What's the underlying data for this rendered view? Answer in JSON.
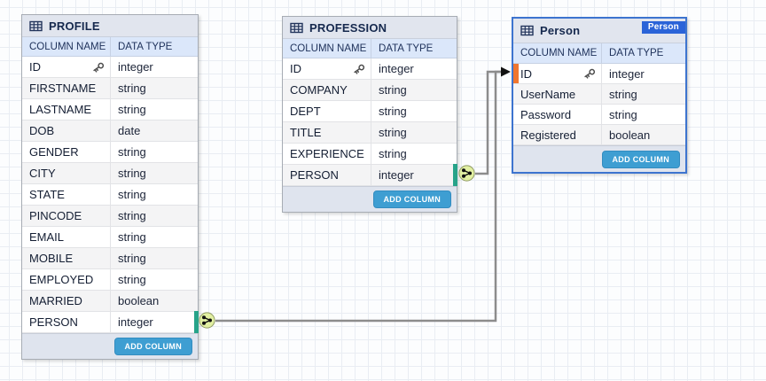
{
  "tables": [
    {
      "title": "PROFILE",
      "col_headers": [
        "COLUMN NAME",
        "DATA TYPE"
      ],
      "add_column_label": "ADD COLUMN",
      "rows": [
        {
          "name": "ID",
          "type": "integer",
          "primary_key": true
        },
        {
          "name": "FIRSTNAME",
          "type": "string"
        },
        {
          "name": "LASTNAME",
          "type": "string"
        },
        {
          "name": "DOB",
          "type": "date"
        },
        {
          "name": "GENDER",
          "type": "string"
        },
        {
          "name": "CITY",
          "type": "string"
        },
        {
          "name": "STATE",
          "type": "string"
        },
        {
          "name": "PINCODE",
          "type": "string"
        },
        {
          "name": "EMAIL",
          "type": "string"
        },
        {
          "name": "MOBILE",
          "type": "string"
        },
        {
          "name": "EMPLOYED",
          "type": "string"
        },
        {
          "name": "MARRIED",
          "type": "boolean"
        },
        {
          "name": "PERSON",
          "type": "integer",
          "relationship_source": true
        }
      ]
    },
    {
      "title": "PROFESSION",
      "col_headers": [
        "COLUMN NAME",
        "DATA TYPE"
      ],
      "add_column_label": "ADD COLUMN",
      "rows": [
        {
          "name": "ID",
          "type": "integer",
          "primary_key": true
        },
        {
          "name": "COMPANY",
          "type": "string"
        },
        {
          "name": "DEPT",
          "type": "string"
        },
        {
          "name": "TITLE",
          "type": "string"
        },
        {
          "name": "EXPERIENCE",
          "type": "string"
        },
        {
          "name": "PERSON",
          "type": "integer",
          "relationship_source": true
        }
      ]
    },
    {
      "title": "Person",
      "badge": "Person",
      "col_headers": [
        "COLUMN NAME",
        "DATA TYPE"
      ],
      "add_column_label": "ADD COLUMN",
      "rows": [
        {
          "name": "ID",
          "type": "integer",
          "primary_key": true,
          "relationship_target": true
        },
        {
          "name": "UserName",
          "type": "string"
        },
        {
          "name": "Password",
          "type": "string"
        },
        {
          "name": "Registered",
          "type": "boolean"
        }
      ]
    }
  ],
  "relationships": [
    {
      "from_table": "PROFILE",
      "from_column": "PERSON",
      "to_table": "Person",
      "to_column": "ID"
    },
    {
      "from_table": "PROFESSION",
      "from_column": "PERSON",
      "to_table": "Person",
      "to_column": "ID"
    }
  ],
  "colors": {
    "add_column_button": "#3e9ed2",
    "person_badge": "#2a63d8",
    "person_table_border": "#3d74cf",
    "relationship_source_bar": "#27a389",
    "relationship_target_bar": "#f0762f",
    "connection_line": "#8c8c8c",
    "connector_node_fill": "#e2f0a2",
    "header_background": "#e1e5ee",
    "column_header_background": "#dbe7fa"
  }
}
